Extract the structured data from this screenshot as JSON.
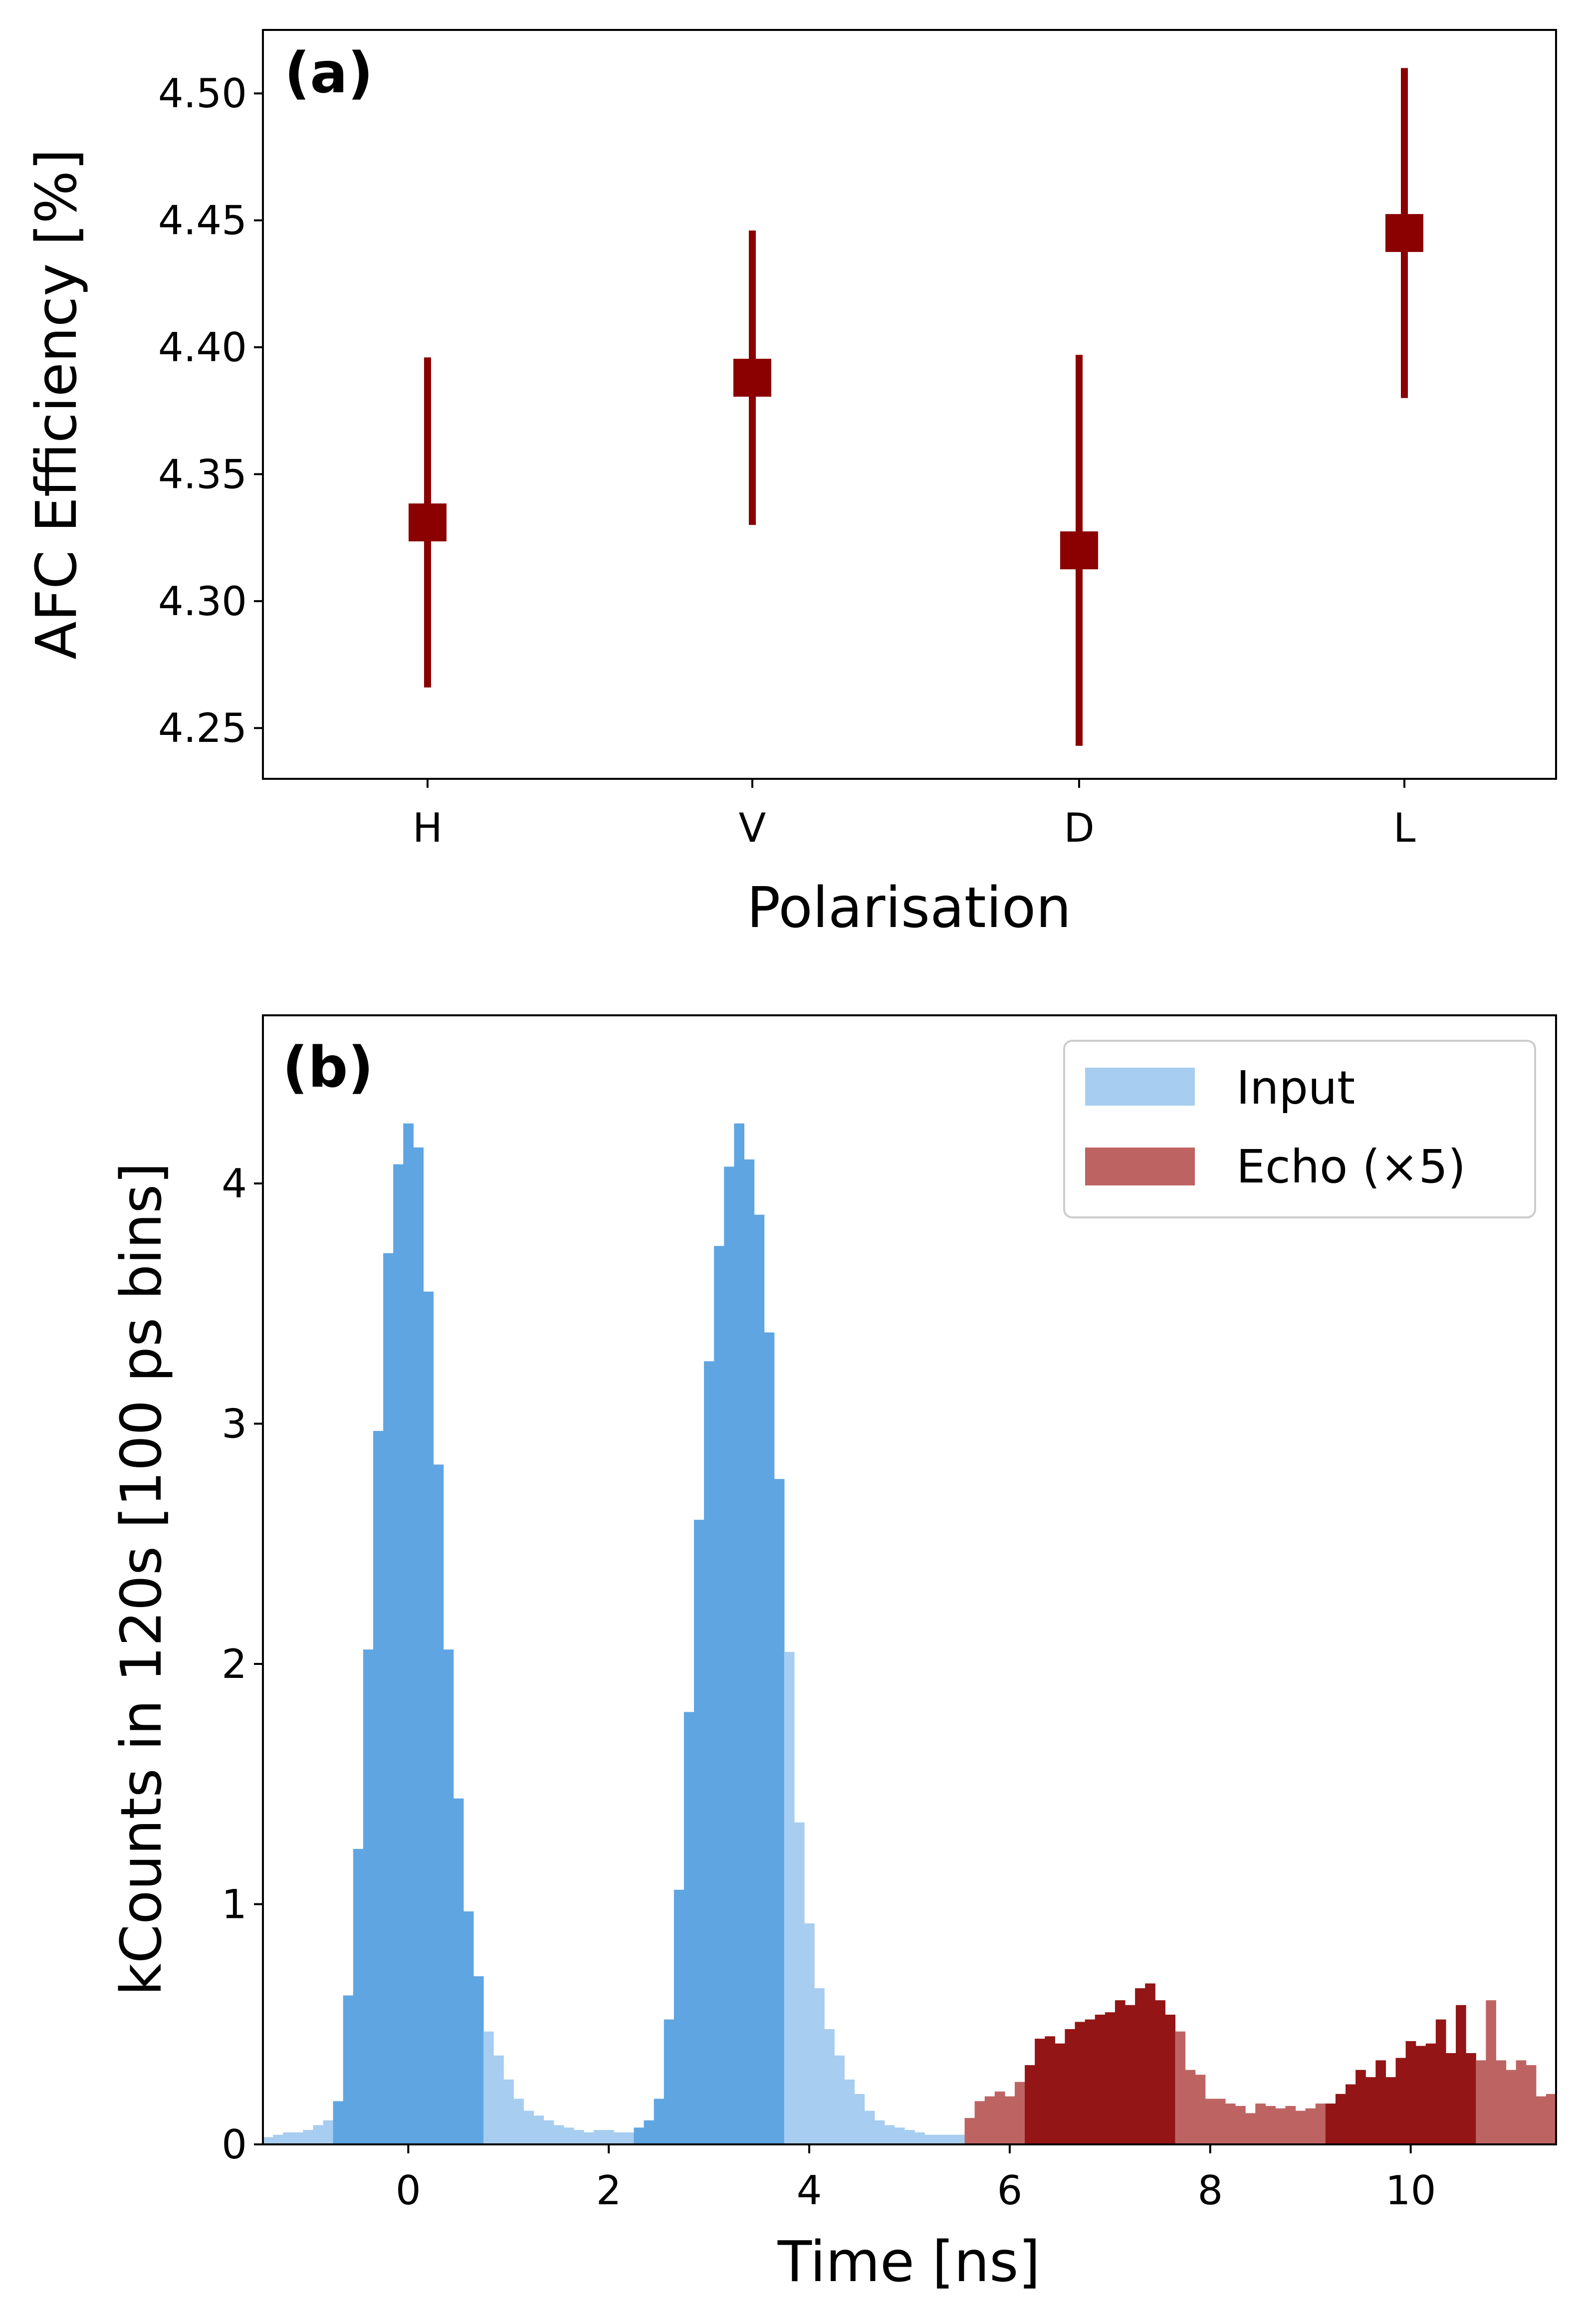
{
  "colors": {
    "marker": "#8b0000",
    "input_dark": "#5fa5e2",
    "input_light": "#a7cdf0",
    "echo_dark": "#931516",
    "echo_light": "#bd6463",
    "axis": "#000000"
  },
  "chart_data": [
    {
      "type": "scatter",
      "panel_label": "(a)",
      "title": "",
      "xlabel": "Polarisation",
      "ylabel": "AFC Efficiency [%]",
      "categories": [
        "H",
        "V",
        "D",
        "L"
      ],
      "values": [
        4.331,
        4.388,
        4.32,
        4.445
      ],
      "error_low": [
        4.266,
        4.33,
        4.243,
        4.38
      ],
      "error_high": [
        4.396,
        4.446,
        4.397,
        4.51
      ],
      "ylim": [
        4.23,
        4.525
      ],
      "yticks": [
        4.25,
        4.3,
        4.35,
        4.4,
        4.45,
        4.5
      ],
      "ytick_labels": [
        "4.25",
        "4.30",
        "4.35",
        "4.40",
        "4.45",
        "4.50"
      ],
      "grid": false,
      "marker": "square"
    },
    {
      "type": "bar",
      "panel_label": "(b)",
      "title": "",
      "xlabel": "Time [ns]",
      "ylabel": "kCounts in 120s [100 ps bins]",
      "xlim": [
        -1.45,
        11.45
      ],
      "ylim": [
        0,
        4.7
      ],
      "xticks": [
        0,
        2,
        4,
        6,
        8,
        10
      ],
      "xtick_labels": [
        "0",
        "2",
        "4",
        "6",
        "8",
        "10"
      ],
      "yticks": [
        0,
        1,
        2,
        3,
        4
      ],
      "ytick_labels": [
        "0",
        "1",
        "2",
        "3",
        "4"
      ],
      "bin_width": 0.1,
      "grid": false,
      "legend": {
        "position": "top-right",
        "entries": [
          {
            "label": "Input",
            "color_key": "input_light"
          },
          {
            "label": "Echo (×5)",
            "color_key": "echo_light"
          }
        ]
      },
      "series": [
        {
          "name": "Input",
          "x_start": -1.45,
          "values": [
            0.03,
            0.04,
            0.05,
            0.05,
            0.06,
            0.08,
            0.1,
            0.18,
            0.62,
            1.23,
            2.06,
            2.97,
            3.71,
            4.08,
            4.25,
            4.15,
            3.55,
            2.83,
            2.06,
            1.44,
            0.97,
            0.7,
            0.47,
            0.37,
            0.27,
            0.19,
            0.14,
            0.12,
            0.1,
            0.08,
            0.07,
            0.06,
            0.05,
            0.06,
            0.06,
            0.05,
            0.05,
            0.07,
            0.1,
            0.19,
            0.52,
            1.06,
            1.8,
            2.6,
            3.26,
            3.74,
            4.07,
            4.25,
            4.1,
            3.87,
            3.38,
            2.77,
            2.05,
            1.34,
            0.92,
            0.65,
            0.48,
            0.37,
            0.27,
            0.21,
            0.14,
            0.1,
            0.08,
            0.07,
            0.06,
            0.05,
            0.04,
            0.04,
            0.04,
            0.04,
            0.04
          ],
          "highlight": [
            [
              -0.75,
              0.75
            ],
            [
              2.25,
              3.75
            ]
          ]
        },
        {
          "name": "Echo (×5)",
          "x_start": 5.55,
          "values": [
            0.11,
            0.18,
            0.2,
            0.22,
            0.2,
            0.26,
            0.33,
            0.44,
            0.45,
            0.42,
            0.48,
            0.51,
            0.52,
            0.54,
            0.55,
            0.6,
            0.58,
            0.65,
            0.67,
            0.6,
            0.54,
            0.47,
            0.31,
            0.29,
            0.19,
            0.19,
            0.17,
            0.16,
            0.13,
            0.17,
            0.16,
            0.15,
            0.16,
            0.14,
            0.15,
            0.17,
            0.17,
            0.21,
            0.25,
            0.31,
            0.28,
            0.35,
            0.28,
            0.36,
            0.43,
            0.41,
            0.42,
            0.52,
            0.38,
            0.58,
            0.38,
            0.35,
            0.6,
            0.35,
            0.31,
            0.35,
            0.33,
            0.2,
            0.21,
            0.2,
            0.16,
            0.13,
            0.13,
            0.13,
            0.1,
            0.09,
            0.12,
            0.1,
            0.1,
            0.1
          ],
          "highlight": [
            [
              6.15,
              7.65
            ],
            [
              9.15,
              10.65
            ]
          ]
        }
      ]
    }
  ]
}
